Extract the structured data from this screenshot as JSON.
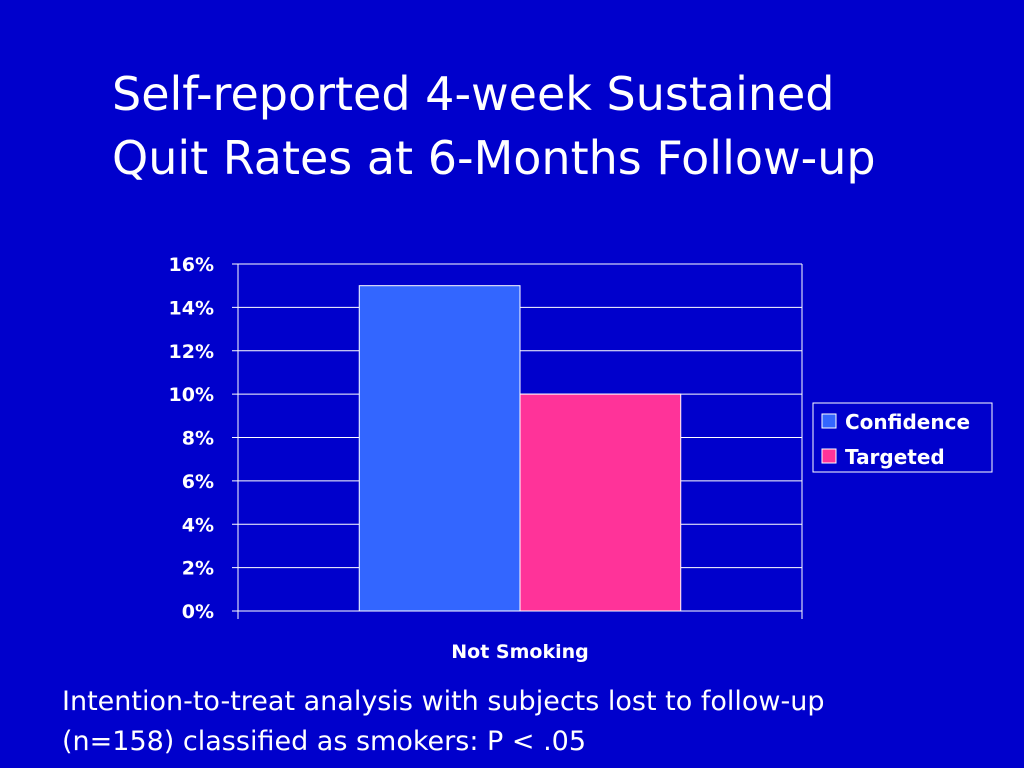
{
  "slide": {
    "title_line1": "Self-reported 4-week Sustained",
    "title_line2": "Quit Rates at 6-Months Follow-up",
    "caption_line1": "Intention-to-treat analysis with subjects lost to follow-up",
    "caption_line2": "(n=158) classified as smokers: P < .05",
    "background_color": "#0000cc"
  },
  "chart_data": {
    "type": "bar",
    "categories": [
      "Not Smoking"
    ],
    "series": [
      {
        "name": "Confidence",
        "values": [
          0.15
        ],
        "color": "#3366ff"
      },
      {
        "name": "Targeted",
        "values": [
          0.1
        ],
        "color": "#ff3399"
      }
    ],
    "ylim": [
      0,
      0.16
    ],
    "yticks": [
      0,
      0.02,
      0.04,
      0.06,
      0.08,
      0.1,
      0.12,
      0.14,
      0.16
    ],
    "ytick_labels": [
      "0%",
      "2%",
      "4%",
      "6%",
      "8%",
      "10%",
      "12%",
      "14%",
      "16%"
    ],
    "grid": true,
    "legend_position": "right"
  }
}
